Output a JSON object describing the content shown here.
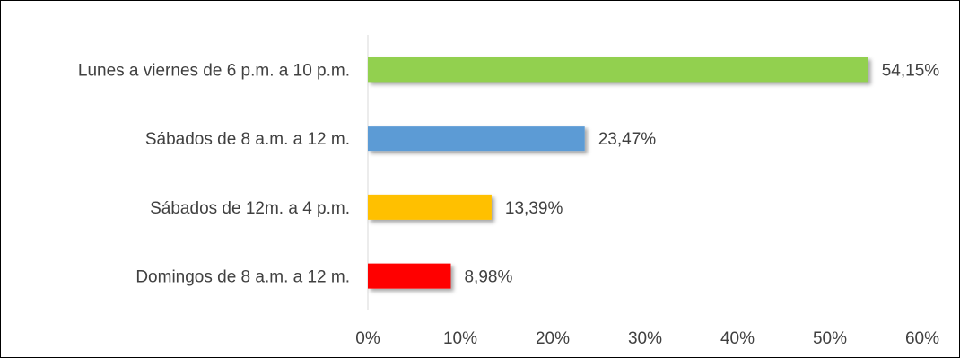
{
  "chart_data": {
    "type": "bar",
    "orientation": "horizontal",
    "categories": [
      "Lunes a viernes de 6 p.m. a 10 p.m.",
      "Sábados de 8 a.m. a 12 m.",
      "Sábados de 12m. a 4 p.m.",
      "Domingos de 8 a.m. a 12 m."
    ],
    "values": [
      54.15,
      23.47,
      13.39,
      8.98
    ],
    "data_labels": [
      "54,15%",
      "23,47%",
      "13,39%",
      "8,98%"
    ],
    "colors": [
      "#92D050",
      "#5B9BD5",
      "#FFC000",
      "#FF0000"
    ],
    "xlim": [
      0,
      60
    ],
    "ticks": [
      0,
      10,
      20,
      30,
      40,
      50,
      60
    ],
    "tick_labels": [
      "0%",
      "10%",
      "20%",
      "30%",
      "40%",
      "50%",
      "60%"
    ],
    "grid": false,
    "legend": "none",
    "title": "",
    "xlabel": "",
    "ylabel": ""
  }
}
